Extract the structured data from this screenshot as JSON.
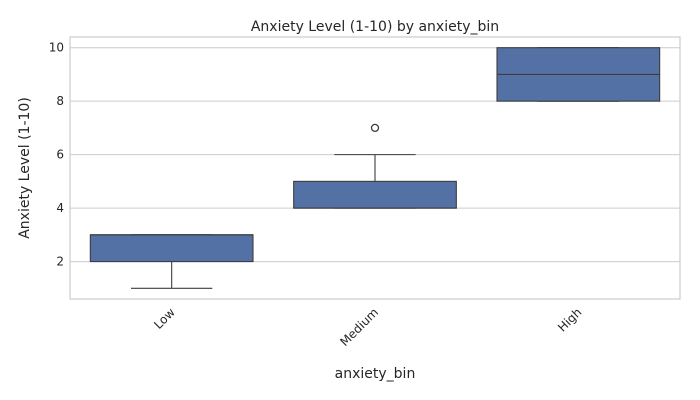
{
  "chart_data": {
    "type": "box",
    "title": "Anxiety Level (1-10) by anxiety_bin",
    "xlabel": "anxiety_bin",
    "ylabel": "Anxiety Level (1-10)",
    "categories": [
      "Low",
      "Medium",
      "High"
    ],
    "ylim": [
      0.6,
      10.4
    ],
    "yticks": [
      2,
      4,
      6,
      8,
      10
    ],
    "grid": "horizontal",
    "box_color": "#5471a6",
    "line_color": "#3d3d3d",
    "boxes": [
      {
        "category": "Low",
        "whisker_low": 1,
        "q1": 2,
        "median": 3,
        "q3": 3,
        "whisker_high": 3,
        "fliers": []
      },
      {
        "category": "Medium",
        "whisker_low": 4,
        "q1": 4,
        "median": 4,
        "q3": 5,
        "whisker_high": 6,
        "fliers": [
          7
        ]
      },
      {
        "category": "High",
        "whisker_low": 8,
        "q1": 8,
        "median": 9,
        "q3": 10,
        "whisker_high": 10,
        "fliers": []
      }
    ]
  }
}
